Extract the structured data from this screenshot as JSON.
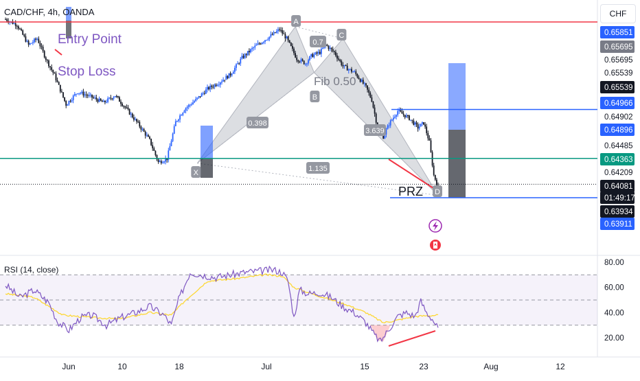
{
  "header": {
    "symbol": "CAD/CHF, 4h, OANDA",
    "currency": "CHF"
  },
  "annotations": {
    "entry": "Entry Point",
    "stop": "Stop Loss",
    "prz": "PRZ",
    "pts": {
      "A": "A",
      "B": "B",
      "C": "C",
      "D": "D",
      "X": "X"
    },
    "ratios": {
      "ab": "0.7",
      "xb": "0.398",
      "cd": "3.639",
      "xd": "1.135",
      "fib": "Fib 0.50"
    }
  },
  "price_tags": [
    {
      "label": "0.65851",
      "kind": "blue"
    },
    {
      "label": "0.65695",
      "kind": "gray"
    },
    {
      "label": "0.65695",
      "kind": "white"
    },
    {
      "label": "0.65539",
      "kind": "white"
    },
    {
      "label": "0.65539",
      "kind": "black"
    },
    {
      "label": "0.64966",
      "kind": "blue"
    },
    {
      "label": "0.64902",
      "kind": "white"
    },
    {
      "label": "0.64896",
      "kind": "blue"
    },
    {
      "label": "0.64485",
      "kind": "white"
    },
    {
      "label": "0.64363",
      "kind": "green"
    },
    {
      "label": "0.64209",
      "kind": "white"
    },
    {
      "label": "0.64081",
      "kind": "black"
    },
    {
      "label": "01:49:17",
      "kind": "black"
    },
    {
      "label": "0.63934",
      "kind": "black"
    },
    {
      "label": "0.63911",
      "kind": "blue"
    }
  ],
  "rsi": {
    "title": "RSI (14, close)",
    "ticks": [
      "80.00",
      "60.00",
      "40.00",
      "20.00"
    ]
  },
  "xaxis": {
    "ticks": [
      "Jun",
      "10",
      "18",
      "Jul",
      "15",
      "23",
      "Aug",
      "12"
    ]
  },
  "colors": {
    "up": "#2962ff",
    "down": "#131722",
    "red": "#f23645",
    "blue": "#2962ff",
    "green": "#089981",
    "rsi": "#7e57c2",
    "rsi_ma": "#fdd835",
    "pattern": "#b2b5be"
  },
  "chart_data": [
    {
      "type": "candlestick",
      "title": "CAD/CHF, 4h, OANDA",
      "xlabel": "",
      "ylabel": "",
      "x_ticks": [
        "Jun",
        "10",
        "18",
        "Jul",
        "15",
        "23",
        "Aug",
        "12"
      ],
      "ylim": [
        0.6386,
        0.659
      ],
      "harmonic_points": [
        {
          "label": "X",
          "price": 0.6431
        },
        {
          "label": "A",
          "price": 0.658
        },
        {
          "label": "B",
          "price": 0.653
        },
        {
          "label": "C",
          "price": 0.6567
        },
        {
          "label": "D",
          "price": 0.6396
        }
      ],
      "ratios": [
        "0.7",
        "0.398",
        "3.639",
        "1.135",
        "Fib 0.50"
      ],
      "lines": [
        {
          "name": "resistance",
          "price": 0.65851,
          "color": "#f23645"
        },
        {
          "name": "take-profit",
          "price": 0.64896,
          "color": "#2962ff"
        },
        {
          "name": "support",
          "price": 0.64363,
          "color": "#089981"
        },
        {
          "name": "prz",
          "price": 0.63934,
          "color": "#2962ff"
        }
      ],
      "last_price": 0.64081,
      "close_path": [
        [
          0,
          0.6588
        ],
        [
          8,
          0.6582
        ],
        [
          16,
          0.656
        ],
        [
          22,
          0.6567
        ],
        [
          28,
          0.6545
        ],
        [
          34,
          0.6527
        ],
        [
          42,
          0.6495
        ],
        [
          50,
          0.6509
        ],
        [
          60,
          0.6503
        ],
        [
          68,
          0.6497
        ],
        [
          76,
          0.6505
        ],
        [
          84,
          0.649
        ],
        [
          92,
          0.6474
        ],
        [
          100,
          0.6456
        ],
        [
          106,
          0.6432
        ],
        [
          112,
          0.6436
        ],
        [
          118,
          0.6476
        ],
        [
          124,
          0.649
        ],
        [
          132,
          0.65
        ],
        [
          140,
          0.6512
        ],
        [
          148,
          0.6519
        ],
        [
          156,
          0.6528
        ],
        [
          164,
          0.6546
        ],
        [
          172,
          0.6557
        ],
        [
          180,
          0.6566
        ],
        [
          186,
          0.6572
        ],
        [
          190,
          0.6577
        ],
        [
          195,
          0.6567
        ],
        [
          202,
          0.6545
        ],
        [
          208,
          0.654
        ],
        [
          212,
          0.6548
        ],
        [
          218,
          0.6552
        ],
        [
          222,
          0.656
        ],
        [
          228,
          0.6552
        ],
        [
          234,
          0.6537
        ],
        [
          242,
          0.653
        ],
        [
          250,
          0.6514
        ],
        [
          254,
          0.65
        ],
        [
          258,
          0.647
        ],
        [
          262,
          0.646
        ],
        [
          266,
          0.6474
        ],
        [
          272,
          0.6488
        ],
        [
          280,
          0.648
        ],
        [
          286,
          0.647
        ],
        [
          290,
          0.6475
        ],
        [
          294,
          0.6454
        ],
        [
          297,
          0.6418
        ],
        [
          300,
          0.6405
        ]
      ]
    },
    {
      "type": "line",
      "title": "RSI (14, close)",
      "xlabel": "",
      "ylabel": "",
      "ylim": [
        10,
        85
      ],
      "y_ticks": [
        80,
        60,
        40,
        20
      ],
      "bands": [
        70,
        50,
        30
      ],
      "series": [
        {
          "values_path": [
            [
              0,
              62
            ],
            [
              10,
              52
            ],
            [
              20,
              58
            ],
            [
              30,
              48
            ],
            [
              36,
              33
            ],
            [
              44,
              26
            ],
            [
              52,
              36
            ],
            [
              60,
              38
            ],
            [
              70,
              30
            ],
            [
              80,
              36
            ],
            [
              90,
              40
            ],
            [
              100,
              45
            ],
            [
              110,
              38
            ],
            [
              115,
              30
            ],
            [
              120,
              50
            ],
            [
              128,
              72
            ],
            [
              136,
              70
            ],
            [
              146,
              68
            ],
            [
              156,
              70
            ],
            [
              166,
              72
            ],
            [
              176,
              73
            ],
            [
              186,
              74
            ],
            [
              192,
              72
            ],
            [
              196,
              65
            ],
            [
              200,
              36
            ],
            [
              204,
              58
            ],
            [
              210,
              55
            ],
            [
              218,
              56
            ],
            [
              226,
              52
            ],
            [
              234,
              45
            ],
            [
              242,
              40
            ],
            [
              250,
              32
            ],
            [
              256,
              22
            ],
            [
              260,
              17
            ],
            [
              266,
              27
            ],
            [
              272,
              37
            ],
            [
              278,
              40
            ],
            [
              284,
              37
            ],
            [
              288,
              49
            ],
            [
              292,
              40
            ],
            [
              296,
              35
            ],
            [
              300,
              27
            ]
          ]
        },
        {
          "values_path": [
            [
              0,
              55
            ],
            [
              20,
              52
            ],
            [
              40,
              38
            ],
            [
              60,
              36
            ],
            [
              80,
              35
            ],
            [
              100,
              40
            ],
            [
              115,
              38
            ],
            [
              125,
              50
            ],
            [
              140,
              65
            ],
            [
              160,
              67
            ],
            [
              180,
              70
            ],
            [
              192,
              69
            ],
            [
              200,
              60
            ],
            [
              215,
              54
            ],
            [
              235,
              47
            ],
            [
              250,
              40
            ],
            [
              262,
              32
            ],
            [
              272,
              34
            ],
            [
              284,
              37
            ],
            [
              300,
              38
            ]
          ]
        }
      ]
    }
  ]
}
